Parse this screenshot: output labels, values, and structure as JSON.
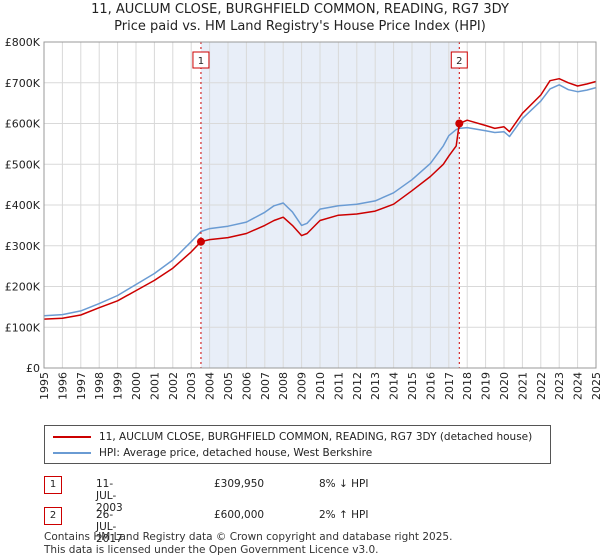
{
  "chart_data": {
    "type": "line",
    "title": "11, AUCLUM CLOSE, BURGHFIELD COMMON, READING, RG7 3DY",
    "subtitle": "Price paid vs. HM Land Registry's House Price Index (HPI)",
    "xlabel": "",
    "ylabel": "",
    "xlim": [
      1995,
      2025
    ],
    "ylim": [
      0,
      800000
    ],
    "x_ticks": [
      "1995",
      "1996",
      "1997",
      "1998",
      "1999",
      "2000",
      "2001",
      "2002",
      "2003",
      "2004",
      "2005",
      "2006",
      "2007",
      "2008",
      "2009",
      "2010",
      "2011",
      "2012",
      "2013",
      "2014",
      "2015",
      "2016",
      "2017",
      "2018",
      "2019",
      "2020",
      "2021",
      "2022",
      "2023",
      "2024",
      "2025"
    ],
    "y_ticks": [
      {
        "value": 0,
        "label": "£0"
      },
      {
        "value": 100000,
        "label": "£100K"
      },
      {
        "value": 200000,
        "label": "£200K"
      },
      {
        "value": 300000,
        "label": "£300K"
      },
      {
        "value": 400000,
        "label": "£400K"
      },
      {
        "value": 500000,
        "label": "£500K"
      },
      {
        "value": 600000,
        "label": "£600K"
      },
      {
        "value": 700000,
        "label": "£700K"
      },
      {
        "value": 800000,
        "label": "£800K"
      }
    ],
    "grid": true,
    "shaded_range": [
      2003.53,
      2017.57
    ],
    "series": [
      {
        "name": "11, AUCLUM CLOSE, BURGHFIELD COMMON, READING, RG7 3DY (detached house)",
        "color": "#cc0000",
        "x": [
          1995,
          1996,
          1997,
          1998,
          1999,
          2000,
          2001,
          2002,
          2003,
          2003.53,
          2004,
          2005,
          2006,
          2007,
          2007.5,
          2008,
          2008.5,
          2009,
          2009.3,
          2010,
          2011,
          2012,
          2013,
          2014,
          2015,
          2016,
          2016.7,
          2017,
          2017.4,
          2017.57,
          2018,
          2019,
          2019.5,
          2020,
          2020.3,
          2021,
          2022,
          2022.5,
          2023,
          2023.5,
          2024,
          2024.5,
          2025
        ],
        "y": [
          120000,
          122000,
          130000,
          148000,
          165000,
          190000,
          215000,
          245000,
          285000,
          309950,
          315000,
          320000,
          330000,
          350000,
          362000,
          370000,
          350000,
          325000,
          330000,
          362000,
          375000,
          378000,
          385000,
          402000,
          435000,
          470000,
          500000,
          520000,
          545000,
          600000,
          608000,
          595000,
          588000,
          592000,
          580000,
          625000,
          670000,
          705000,
          710000,
          700000,
          692000,
          697000,
          703000
        ]
      },
      {
        "name": "HPI: Average price, detached house, West Berkshire",
        "color": "#6a9bd3",
        "x": [
          1995,
          1996,
          1997,
          1998,
          1999,
          2000,
          2001,
          2002,
          2003,
          2003.53,
          2004,
          2005,
          2006,
          2007,
          2007.5,
          2008,
          2008.5,
          2009,
          2009.3,
          2010,
          2011,
          2012,
          2013,
          2014,
          2015,
          2016,
          2016.7,
          2017,
          2017.4,
          2017.57,
          2018,
          2019,
          2019.5,
          2020,
          2020.3,
          2021,
          2022,
          2022.5,
          2023,
          2023.5,
          2024,
          2024.5,
          2025
        ],
        "y": [
          128000,
          131000,
          140000,
          158000,
          178000,
          205000,
          232000,
          265000,
          310000,
          335000,
          342000,
          348000,
          358000,
          382000,
          398000,
          405000,
          383000,
          350000,
          355000,
          390000,
          398000,
          402000,
          410000,
          430000,
          462000,
          502000,
          545000,
          570000,
          585000,
          588000,
          590000,
          582000,
          578000,
          580000,
          568000,
          612000,
          655000,
          685000,
          695000,
          683000,
          678000,
          682000,
          688000
        ]
      }
    ],
    "annotations": [
      {
        "label": "1",
        "x": 2003.53,
        "y": 309950
      },
      {
        "label": "2",
        "x": 2017.57,
        "y": 600000
      }
    ]
  },
  "legend": {
    "property": "11, AUCLUM CLOSE, BURGHFIELD COMMON, READING, RG7 3DY (detached house)",
    "hpi": "HPI: Average price, detached house, West Berkshire"
  },
  "transactions": [
    {
      "num": "1",
      "date": "11-JUL-2003",
      "price": "£309,950",
      "hpi": "8% ↓ HPI"
    },
    {
      "num": "2",
      "date": "26-JUL-2017",
      "price": "£600,000",
      "hpi": "2% ↑ HPI"
    }
  ],
  "footer": {
    "line1": "Contains HM Land Registry data © Crown copyright and database right 2025.",
    "line2": "This data is licensed under the Open Government Licence v3.0."
  }
}
